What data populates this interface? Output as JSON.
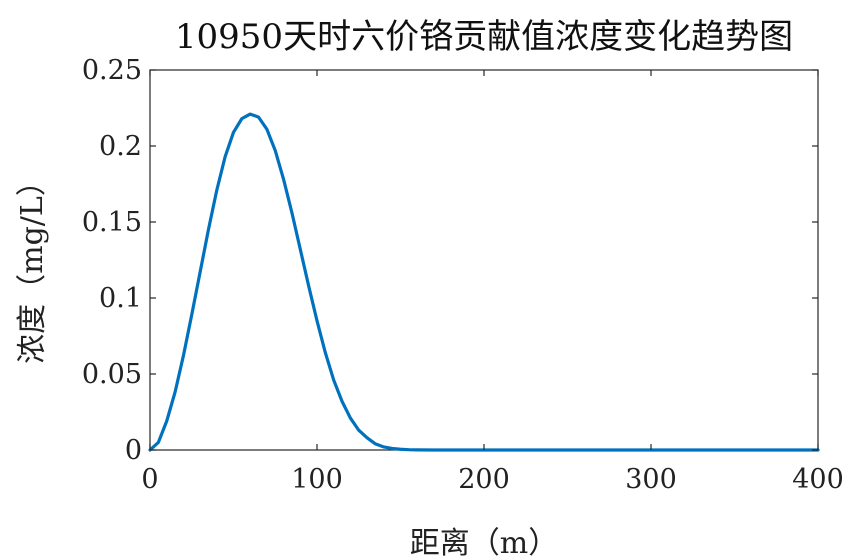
{
  "chart_data": {
    "type": "line",
    "title": "10950天时六价铬贡献值浓度变化趋势图",
    "xlabel": "距离（m）",
    "ylabel": "浓度（mg/L）",
    "xlim": [
      0,
      400
    ],
    "ylim": [
      0,
      0.25
    ],
    "xticks": [
      0,
      100,
      200,
      300,
      400
    ],
    "xtick_labels": [
      "0",
      "100",
      "200",
      "300",
      "400"
    ],
    "yticks": [
      0,
      0.05,
      0.1,
      0.15,
      0.2,
      0.25
    ],
    "ytick_labels": [
      "0",
      "0.05",
      "0.1",
      "0.15",
      "0.2",
      "0.25"
    ],
    "grid": false,
    "box": true,
    "series": [
      {
        "color": "#0072BD",
        "x": [
          0,
          5,
          10,
          15,
          20,
          25,
          30,
          35,
          40,
          45,
          50,
          55,
          60,
          65,
          70,
          75,
          80,
          85,
          90,
          95,
          100,
          105,
          110,
          115,
          120,
          125,
          130,
          135,
          140,
          145,
          150,
          155,
          160,
          170,
          180,
          200,
          250,
          300,
          350,
          400
        ],
        "y": [
          0,
          0.005,
          0.019,
          0.038,
          0.062,
          0.089,
          0.117,
          0.145,
          0.171,
          0.193,
          0.209,
          0.218,
          0.221,
          0.219,
          0.211,
          0.197,
          0.178,
          0.156,
          0.132,
          0.108,
          0.085,
          0.064,
          0.046,
          0.032,
          0.021,
          0.013,
          0.008,
          0.004,
          0.002,
          0.001,
          0.0005,
          0.0002,
          0.0001,
          0,
          0,
          0,
          0,
          0,
          0,
          0
        ]
      }
    ]
  }
}
